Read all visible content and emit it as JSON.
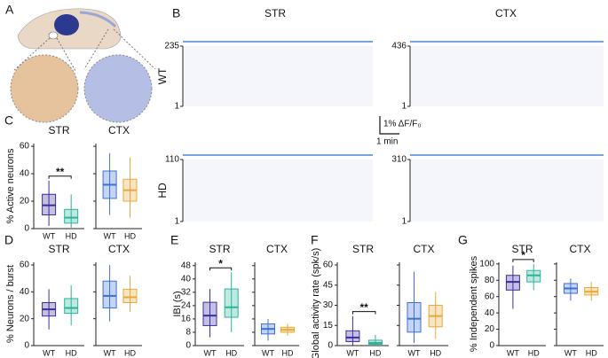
{
  "panel_a": {
    "letter": "A"
  },
  "panel_b": {
    "letter": "B",
    "columns": [
      "STR",
      "CTX"
    ],
    "rows": [
      {
        "label": "WT",
        "str_ticks": [
          1,
          235
        ],
        "ctx_ticks": [
          1,
          436
        ]
      },
      {
        "label": "HD",
        "str_ticks": [
          1,
          110
        ],
        "ctx_ticks": [
          1,
          310
        ]
      }
    ],
    "scale_y": "1% ΔF/F₀",
    "scale_x": "1 min"
  },
  "box_panels": [
    {
      "letter": "C",
      "ylabel": "% Active neurons",
      "ylim": [
        0,
        62
      ],
      "yticks": [
        0,
        20,
        40,
        60
      ],
      "subpanels": [
        {
          "title": "STR",
          "significance": "**",
          "groups": [
            {
              "name": "WT",
              "color": "#3b2e9e",
              "whisker_low": 2,
              "q1": 10,
              "median": 17,
              "q3": 25,
              "whisker_high": 35
            },
            {
              "name": "HD",
              "color": "#2bb39a",
              "whisker_low": 0,
              "q1": 4,
              "median": 8,
              "q3": 14,
              "whisker_high": 25
            }
          ]
        },
        {
          "title": "CTX",
          "groups": [
            {
              "name": "WT",
              "color": "#3d6fd6",
              "whisker_low": 10,
              "q1": 22,
              "median": 32,
              "q3": 42,
              "whisker_high": 55
            },
            {
              "name": "HD",
              "color": "#e8a93a",
              "whisker_low": 8,
              "q1": 20,
              "median": 28,
              "q3": 36,
              "whisker_high": 52
            }
          ]
        }
      ]
    },
    {
      "letter": "D",
      "ylabel": "% Neurons / burst",
      "ylim": [
        0,
        62
      ],
      "yticks": [
        0,
        20,
        40,
        60
      ],
      "subpanels": [
        {
          "title": "STR",
          "groups": [
            {
              "name": "WT",
              "color": "#3b2e9e",
              "whisker_low": 12,
              "q1": 22,
              "median": 27,
              "q3": 32,
              "whisker_high": 42
            },
            {
              "name": "HD",
              "color": "#2bb39a",
              "whisker_low": 15,
              "q1": 24,
              "median": 28,
              "q3": 35,
              "whisker_high": 45
            }
          ]
        },
        {
          "title": "CTX",
          "groups": [
            {
              "name": "WT",
              "color": "#3d6fd6",
              "whisker_low": 18,
              "q1": 28,
              "median": 37,
              "q3": 48,
              "whisker_high": 60
            },
            {
              "name": "HD",
              "color": "#e8a93a",
              "whisker_low": 25,
              "q1": 32,
              "median": 36,
              "q3": 42,
              "whisker_high": 52
            }
          ]
        }
      ]
    },
    {
      "letter": "E",
      "ylabel": "IBI (s)",
      "ylim": [
        0,
        50
      ],
      "yticks": [
        0,
        8,
        16,
        24,
        32,
        40,
        48
      ],
      "subpanels": [
        {
          "title": "STR",
          "significance": "*",
          "groups": [
            {
              "name": "WT",
              "color": "#3b2e9e",
              "whisker_low": 5,
              "q1": 12,
              "median": 18,
              "q3": 26,
              "whisker_high": 34
            },
            {
              "name": "HD",
              "color": "#2bb39a",
              "whisker_low": 8,
              "q1": 17,
              "median": 23,
              "q3": 34,
              "whisker_high": 44
            }
          ]
        },
        {
          "title": "CTX",
          "groups": [
            {
              "name": "WT",
              "color": "#3d6fd6",
              "whisker_low": 3,
              "q1": 7,
              "median": 10,
              "q3": 13,
              "whisker_high": 16
            },
            {
              "name": "HD",
              "color": "#e8a93a",
              "whisker_low": 6,
              "q1": 8,
              "median": 9.5,
              "q3": 11,
              "whisker_high": 13
            }
          ]
        }
      ]
    },
    {
      "letter": "F",
      "ylabel": "Global activity rate (spk/s)",
      "ylim": [
        0,
        62
      ],
      "yticks": [
        0,
        15,
        30,
        45,
        60
      ],
      "subpanels": [
        {
          "title": "STR",
          "significance": "**",
          "groups": [
            {
              "name": "WT",
              "color": "#3b2e9e",
              "whisker_low": 0,
              "q1": 3,
              "median": 6,
              "q3": 11,
              "whisker_high": 22
            },
            {
              "name": "HD",
              "color": "#2bb39a",
              "whisker_low": 0,
              "q1": 1,
              "median": 2,
              "q3": 4,
              "whisker_high": 8
            }
          ]
        },
        {
          "title": "CTX",
          "groups": [
            {
              "name": "WT",
              "color": "#3d6fd6",
              "whisker_low": 2,
              "q1": 10,
              "median": 20,
              "q3": 32,
              "whisker_high": 55
            },
            {
              "name": "HD",
              "color": "#e8a93a",
              "whisker_low": 5,
              "q1": 14,
              "median": 22,
              "q3": 30,
              "whisker_high": 40
            }
          ]
        }
      ]
    },
    {
      "letter": "G",
      "ylabel": "% Independent spikes",
      "ylim": [
        0,
        102
      ],
      "yticks": [
        0,
        20,
        40,
        60,
        80,
        100
      ],
      "subpanels": [
        {
          "title": "STR",
          "significance": "*",
          "groups": [
            {
              "name": "WT",
              "color": "#3b2e9e",
              "whisker_low": 45,
              "q1": 68,
              "median": 78,
              "q3": 86,
              "whisker_high": 98
            },
            {
              "name": "HD",
              "color": "#2bb39a",
              "whisker_low": 68,
              "q1": 78,
              "median": 86,
              "q3": 92,
              "whisker_high": 100
            }
          ]
        },
        {
          "title": "CTX",
          "groups": [
            {
              "name": "WT",
              "color": "#3d6fd6",
              "whisker_low": 55,
              "q1": 64,
              "median": 70,
              "q3": 76,
              "whisker_high": 82
            },
            {
              "name": "HD",
              "color": "#e8a93a",
              "whisker_low": 55,
              "q1": 62,
              "median": 66,
              "q3": 71,
              "whisker_high": 78
            }
          ]
        }
      ]
    }
  ]
}
